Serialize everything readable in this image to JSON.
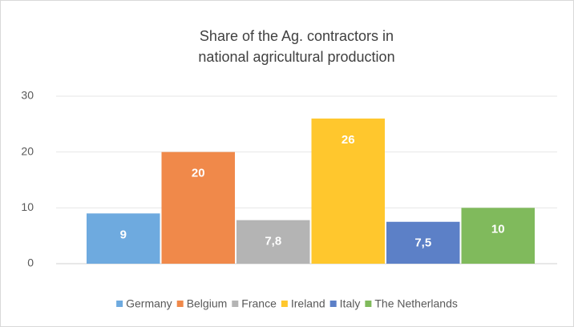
{
  "chart_data": {
    "type": "bar",
    "title": [
      "Share of the Ag. contractors in",
      "national agricultural production"
    ],
    "series": [
      {
        "name": "Germany",
        "color": "#6eaadf",
        "values": [
          9
        ]
      },
      {
        "name": "Belgium",
        "color": "#f0894a",
        "values": [
          20
        ]
      },
      {
        "name": "France",
        "color": "#b4b4b4",
        "values": [
          7.8
        ],
        "value_labels": [
          "7,8"
        ]
      },
      {
        "name": "Ireland",
        "color": "#ffc72d",
        "values": [
          26
        ]
      },
      {
        "name": "Italy",
        "color": "#5c80c7",
        "values": [
          7.5
        ],
        "value_labels": [
          "7,5"
        ]
      },
      {
        "name": "The Netherlands",
        "color": "#80ba5c",
        "values": [
          10
        ]
      }
    ],
    "ylim": [
      0,
      30
    ],
    "yticks": [
      0,
      10,
      20,
      30
    ],
    "grid": true,
    "legend": "bottom"
  }
}
